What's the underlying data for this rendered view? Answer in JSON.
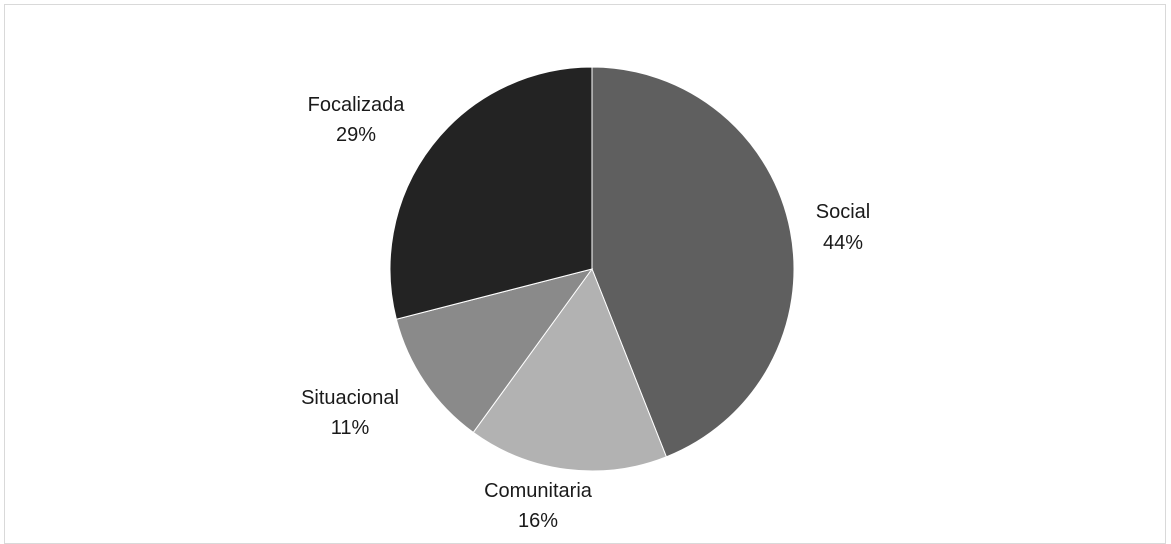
{
  "chart_data": {
    "type": "pie",
    "title": "",
    "slices": [
      {
        "label": "Social",
        "percent_text": "44%",
        "value": 44,
        "color": "#5f5f5f"
      },
      {
        "label": "Comunitaria",
        "percent_text": "16%",
        "value": 16,
        "color": "#b2b2b2"
      },
      {
        "label": "Situacional",
        "percent_text": "11%",
        "value": 11,
        "color": "#8a8a8a"
      },
      {
        "label": "Focalizada",
        "percent_text": "29%",
        "value": 29,
        "color": "#232323"
      }
    ],
    "start": "12 o'clock",
    "direction": "clockwise",
    "legend": "none",
    "data_labels": "outside"
  }
}
